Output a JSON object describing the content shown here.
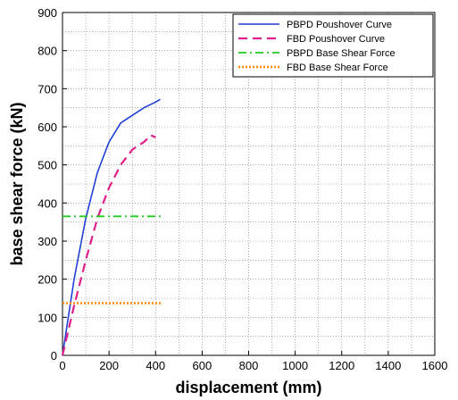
{
  "chart_data": {
    "type": "line",
    "title": "",
    "xlabel": "displacement (mm)",
    "ylabel": "base shear force (kN)",
    "xlim": [
      0,
      1600
    ],
    "ylim": [
      0,
      900
    ],
    "xticks": [
      0,
      200,
      400,
      600,
      800,
      1000,
      1200,
      1400,
      1600
    ],
    "yticks": [
      0,
      100,
      200,
      300,
      400,
      500,
      600,
      700,
      800,
      900
    ],
    "grid": true,
    "legend_position": "top-right",
    "series": [
      {
        "name": "PBPD Poushover Curve",
        "color": "#1f3fd6",
        "style": "solid",
        "x": [
          0,
          50,
          100,
          150,
          200,
          250,
          300,
          350,
          400,
          420
        ],
        "y": [
          0,
          200,
          360,
          480,
          560,
          610,
          630,
          650,
          665,
          672
        ]
      },
      {
        "name": "FBD Poushover Curve",
        "color": "#e0208a",
        "style": "dashed",
        "x": [
          0,
          50,
          100,
          150,
          200,
          250,
          300,
          350,
          380,
          400
        ],
        "y": [
          0,
          130,
          250,
          360,
          440,
          500,
          540,
          560,
          578,
          572
        ]
      },
      {
        "name": "PBPD Base Shear Force",
        "color": "#22cc22",
        "style": "dashdot",
        "x": [
          0,
          430
        ],
        "y": [
          365,
          365
        ]
      },
      {
        "name": "FBD Base Shear Force",
        "color": "#ff8800",
        "style": "dotted",
        "x": [
          0,
          430
        ],
        "y": [
          137,
          137
        ]
      }
    ]
  }
}
